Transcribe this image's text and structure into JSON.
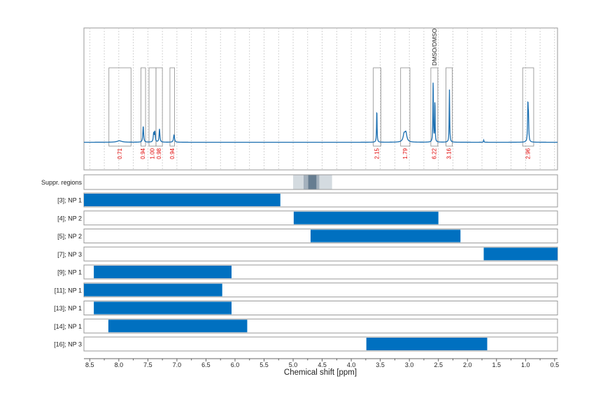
{
  "chart_data": {
    "type": "nmr-spectrum-with-range-bars",
    "xlabel": "Chemical shift [ppm]",
    "xlim": [
      8.6,
      0.45
    ],
    "x_ticks": [
      "8.5",
      "8.0",
      "7.5",
      "7.0",
      "6.5",
      "6.0",
      "5.5",
      "5.0",
      "4.5",
      "4.0",
      "3.5",
      "3.0",
      "2.5",
      "2.0",
      "1.5",
      "1.0",
      "0.5"
    ],
    "spectrum_color": "#1a6eb0",
    "bar_color": "#0070c0",
    "integral_label_color": "#e00000",
    "spectrum_peaks": [
      {
        "ppm": 7.99,
        "height": 0.02,
        "width": 0.05
      },
      {
        "ppm": 7.58,
        "height": 0.22,
        "width": 0.008
      },
      {
        "ppm": 7.4,
        "height": 0.12,
        "width": 0.008
      },
      {
        "ppm": 7.38,
        "height": 0.14,
        "width": 0.008
      },
      {
        "ppm": 7.3,
        "height": 0.18,
        "width": 0.008
      },
      {
        "ppm": 7.05,
        "height": 0.1,
        "width": 0.01
      },
      {
        "ppm": 3.56,
        "height": 0.45,
        "width": 0.005
      },
      {
        "ppm": 3.09,
        "height": 0.1,
        "width": 0.02
      },
      {
        "ppm": 3.06,
        "height": 0.12,
        "width": 0.02
      },
      {
        "ppm": 2.59,
        "height": 0.85,
        "width": 0.005
      },
      {
        "ppm": 2.56,
        "height": 0.6,
        "width": 0.004
      },
      {
        "ppm": 2.31,
        "height": 0.72,
        "width": 0.005
      },
      {
        "ppm": 1.72,
        "height": 0.03,
        "width": 0.005
      },
      {
        "ppm": 0.96,
        "height": 0.5,
        "width": 0.006
      },
      {
        "ppm": 0.95,
        "height": 0.3,
        "width": 0.006
      }
    ],
    "integral_regions": [
      {
        "from": 8.17,
        "to": 7.79,
        "label": "0.71"
      },
      {
        "from": 7.62,
        "to": 7.54,
        "label": "0.94"
      },
      {
        "from": 7.48,
        "to": 7.36,
        "label": "1.00"
      },
      {
        "from": 7.36,
        "to": 7.25,
        "label": "0.98"
      },
      {
        "from": 7.12,
        "to": 7.04,
        "label": "0.94"
      },
      {
        "from": 3.62,
        "to": 3.49,
        "label": "2.15"
      },
      {
        "from": 3.15,
        "to": 2.99,
        "label": "1.79"
      },
      {
        "from": 2.63,
        "to": 2.51,
        "label": "6.22",
        "annotation": "DMSO/DMSO"
      },
      {
        "from": 2.37,
        "to": 2.26,
        "label": "3.16"
      },
      {
        "from": 1.05,
        "to": 0.86,
        "label": "2.96"
      }
    ],
    "suppressed_regions": {
      "label": "Suppr. regions",
      "ranges": [
        {
          "from": 5.0,
          "to": 4.33,
          "opacity": 0.22
        },
        {
          "from": 4.82,
          "to": 4.55,
          "opacity": 0.32
        },
        {
          "from": 4.74,
          "to": 4.6,
          "opacity": 0.6
        }
      ]
    },
    "rows": [
      {
        "label": "[3]; NP 1",
        "from": 8.6,
        "to": 5.22
      },
      {
        "label": "[4]; NP 2",
        "from": 4.99,
        "to": 2.5
      },
      {
        "label": "[5]; NP 2",
        "from": 4.7,
        "to": 2.12
      },
      {
        "label": "[7]; NP 3",
        "from": 1.72,
        "to": 0.45
      },
      {
        "label": "[9]; NP 1",
        "from": 8.43,
        "to": 6.06
      },
      {
        "label": "[11]; NP 1",
        "from": 8.6,
        "to": 6.22
      },
      {
        "label": "[13]; NP 1",
        "from": 8.43,
        "to": 6.06
      },
      {
        "label": "[14]; NP 1",
        "from": 8.18,
        "to": 5.79
      },
      {
        "label": "[16]; NP 3",
        "from": 3.74,
        "to": 1.66
      }
    ]
  }
}
